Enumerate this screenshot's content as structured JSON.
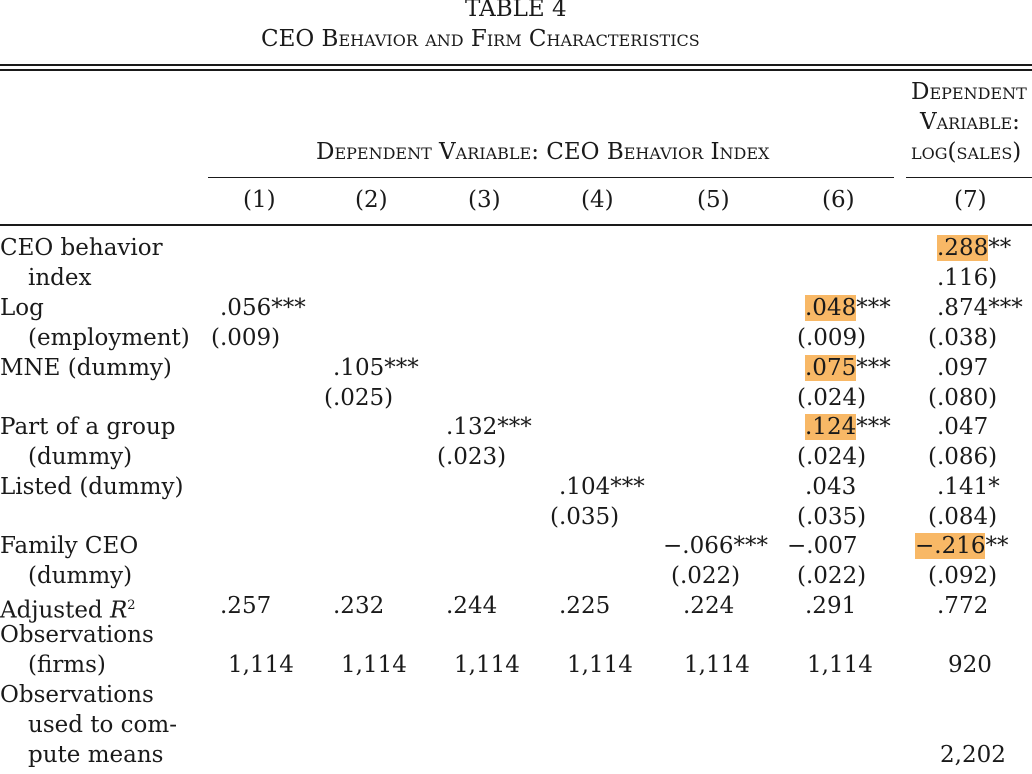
{
  "table": {
    "label": "TABLE 4",
    "title": "CEO Behavior and Firm Characteristics",
    "group_header_1": "Dependent Variable: CEO Behavior Index",
    "group_header_2_lines": [
      "Dependent",
      "Variable:",
      "log(sales)"
    ],
    "column_numbers": [
      "(1)",
      "(2)",
      "(3)",
      "(4)",
      "(5)",
      "(6)",
      "(7)"
    ],
    "highlight_color": "#f8b866",
    "rows": [
      {
        "label": [
          "CEO behavior",
          "index"
        ],
        "cells": {
          "c7": {
            "coef": ".288",
            "stars": "**",
            "se": ".116)",
            "highlight": true
          }
        }
      },
      {
        "label": [
          "Log",
          "(employment)"
        ],
        "cells": {
          "c1": {
            "coef": ".056",
            "stars": "***",
            "se": "(.009)"
          },
          "c6": {
            "coef": ".048",
            "stars": "***",
            "se": "(.009)",
            "highlight": true
          },
          "c7": {
            "coef": ".874",
            "stars": "***",
            "se": "(.038)"
          }
        }
      },
      {
        "label": [
          "MNE (dummy)"
        ],
        "cells": {
          "c2": {
            "coef": ".105",
            "stars": "***",
            "se": "(.025)"
          },
          "c6": {
            "coef": ".075",
            "stars": "***",
            "se": "(.024)",
            "highlight": true
          },
          "c7": {
            "coef": ".097",
            "stars": "",
            "se": "(.080)"
          }
        }
      },
      {
        "label": [
          "Part of a group",
          "(dummy)"
        ],
        "cells": {
          "c3": {
            "coef": ".132",
            "stars": "***",
            "se": "(.023)"
          },
          "c6": {
            "coef": ".124",
            "stars": "***",
            "se": "(.024)",
            "highlight": true
          },
          "c7": {
            "coef": ".047",
            "stars": "",
            "se": "(.086)"
          }
        }
      },
      {
        "label": [
          "Listed (dummy)"
        ],
        "cells": {
          "c4": {
            "coef": ".104",
            "stars": "***",
            "se": "(.035)"
          },
          "c6": {
            "coef": ".043",
            "stars": "",
            "se": "(.035)"
          },
          "c7": {
            "coef": ".141",
            "stars": "*",
            "se": "(.084)"
          }
        }
      },
      {
        "label": [
          "Family CEO",
          "(dummy)"
        ],
        "cells": {
          "c5": {
            "coef": "−.066",
            "stars": "***",
            "se": "(.022)"
          },
          "c6": {
            "coef": "−.007",
            "stars": "",
            "se": "(.022)"
          },
          "c7": {
            "coef": "−.216",
            "stars": "**",
            "se": "(.092)",
            "highlight": true
          }
        }
      }
    ],
    "adjusted_r2": {
      "label": "Adjusted ",
      "label_symbol": "R",
      "label_sup": "2",
      "values": [
        ".257",
        ".232",
        ".244",
        ".225",
        ".224",
        ".291",
        ".772"
      ]
    },
    "observations_firms": {
      "label": [
        "Observations",
        "(firms)"
      ],
      "values": [
        "1,114",
        "1,114",
        "1,114",
        "1,114",
        "1,114",
        "1,114",
        "920"
      ]
    },
    "observations_means": {
      "label": [
        "Observations",
        "used to com-",
        "pute means"
      ],
      "value_c7": "2,202"
    }
  }
}
